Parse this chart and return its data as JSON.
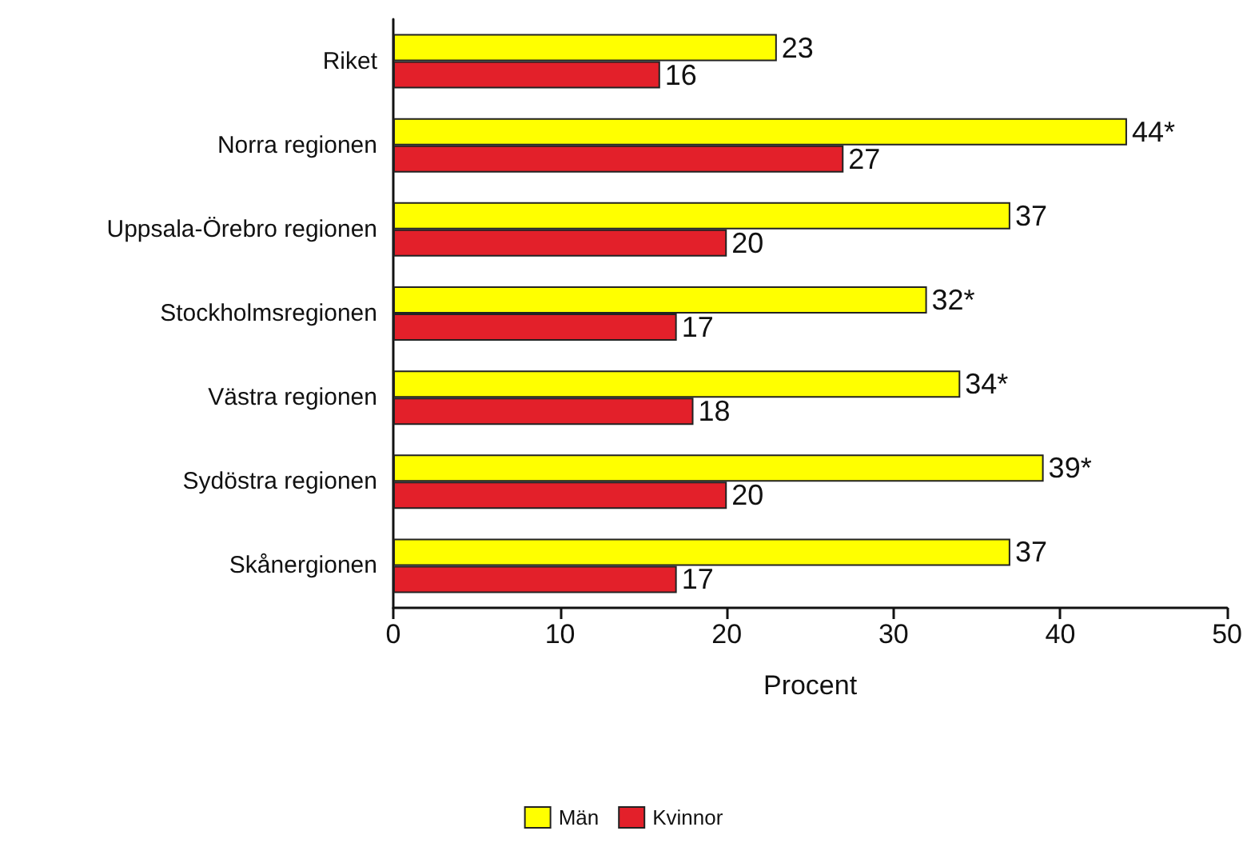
{
  "chart_data": {
    "type": "bar",
    "orientation": "horizontal",
    "xlabel": "Procent",
    "categories": [
      "Riket",
      "Norra regionen",
      "Uppsala-Örebro regionen",
      "Stockholmsregionen",
      "Västra regionen",
      "Sydöstra regionen",
      "Skånergionen"
    ],
    "series": [
      {
        "name": "Män",
        "color": "#ffff00",
        "values": [
          23,
          44,
          37,
          32,
          34,
          39,
          37
        ],
        "value_labels": [
          "23",
          "44*",
          "37",
          "32*",
          "34*",
          "39*",
          "37"
        ]
      },
      {
        "name": "Kvinnor",
        "color": "#e3202a",
        "values": [
          16,
          27,
          20,
          17,
          18,
          20,
          17
        ],
        "value_labels": [
          "16",
          "27",
          "20",
          "17",
          "18",
          "20",
          "17"
        ]
      }
    ],
    "xlim": [
      0,
      50
    ],
    "xticks": [
      0,
      10,
      20,
      30,
      40,
      50
    ],
    "grid": false,
    "legend": "bottom"
  }
}
